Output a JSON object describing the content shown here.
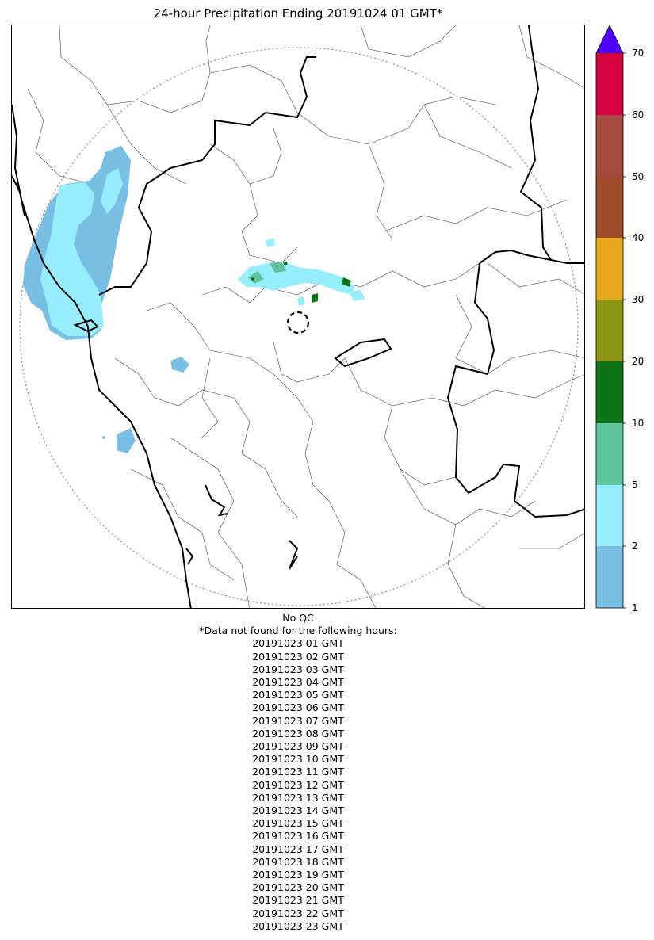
{
  "title": "24-hour Precipitation Ending 20191024 01 GMT*",
  "colors": {
    "bin_1_2": "#78bfe3",
    "bin_2_5": "#98edfd",
    "bin_5_10": "#5ec49b",
    "bin_10_20": "#0f7419",
    "bin_20_30": "#8c9614",
    "bin_30_40": "#e6a81a",
    "bin_40_50": "#9c4c28",
    "bin_50_60": "#a6493f",
    "bin_60_70": "#d50042",
    "extend_over_70": "#5000ff",
    "boundary_state": "#000000",
    "boundary_district": "#444444",
    "range_ring": "#888888"
  },
  "colorbar": {
    "ticks": [
      "1",
      "2",
      "5",
      "10",
      "20",
      "30",
      "40",
      "50",
      "60",
      "70"
    ],
    "extend": "max"
  },
  "map": {
    "range_ring": "dotted",
    "radar_site_marker": "dashed-circle"
  },
  "qc_note": "No QC",
  "missing_header": "*Data not found for the following hours:",
  "missing_hours": [
    "20191023 01 GMT",
    "20191023 02 GMT",
    "20191023 03 GMT",
    "20191023 04 GMT",
    "20191023 05 GMT",
    "20191023 06 GMT",
    "20191023 07 GMT",
    "20191023 08 GMT",
    "20191023 09 GMT",
    "20191023 10 GMT",
    "20191023 11 GMT",
    "20191023 12 GMT",
    "20191023 13 GMT",
    "20191023 14 GMT",
    "20191023 15 GMT",
    "20191023 16 GMT",
    "20191023 17 GMT",
    "20191023 18 GMT",
    "20191023 19 GMT",
    "20191023 20 GMT",
    "20191023 21 GMT",
    "20191023 22 GMT",
    "20191023 23 GMT"
  ]
}
